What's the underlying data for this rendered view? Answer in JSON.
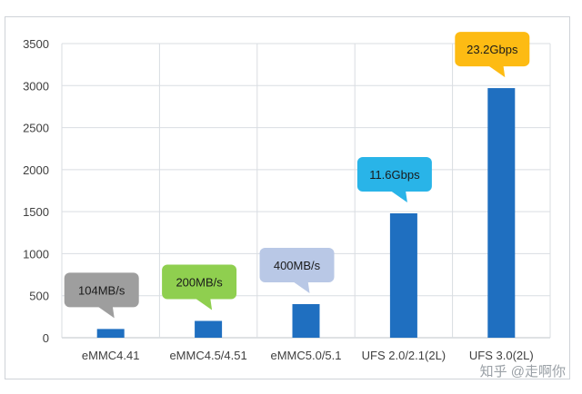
{
  "chart_data": {
    "type": "bar",
    "title": "",
    "xlabel": "",
    "ylabel": "",
    "ylim": [
      0,
      3500
    ],
    "yticks": [
      0,
      500,
      1000,
      1500,
      2000,
      2500,
      3000,
      3500
    ],
    "grid": true,
    "categories": [
      "eMMC4.41",
      "eMMC4.5/4.51",
      "eMMC5.0/5.1",
      "UFS 2.0/2.1(2L)",
      "UFS 3.0(2L)"
    ],
    "values": [
      104,
      200,
      400,
      1480,
      2970
    ],
    "bar_color": "#1f6fc0",
    "annotations": [
      {
        "label": "104MB/s",
        "color": "#9e9e9e"
      },
      {
        "label": "200MB/s",
        "color": "#8fcf4f"
      },
      {
        "label": "400MB/s",
        "color": "#b9c8e6"
      },
      {
        "label": "11.6Gbps",
        "color": "#29b4e8"
      },
      {
        "label": "23.2Gbps",
        "color": "#fdbb13"
      }
    ]
  },
  "watermark": "知乎 @走啊你"
}
